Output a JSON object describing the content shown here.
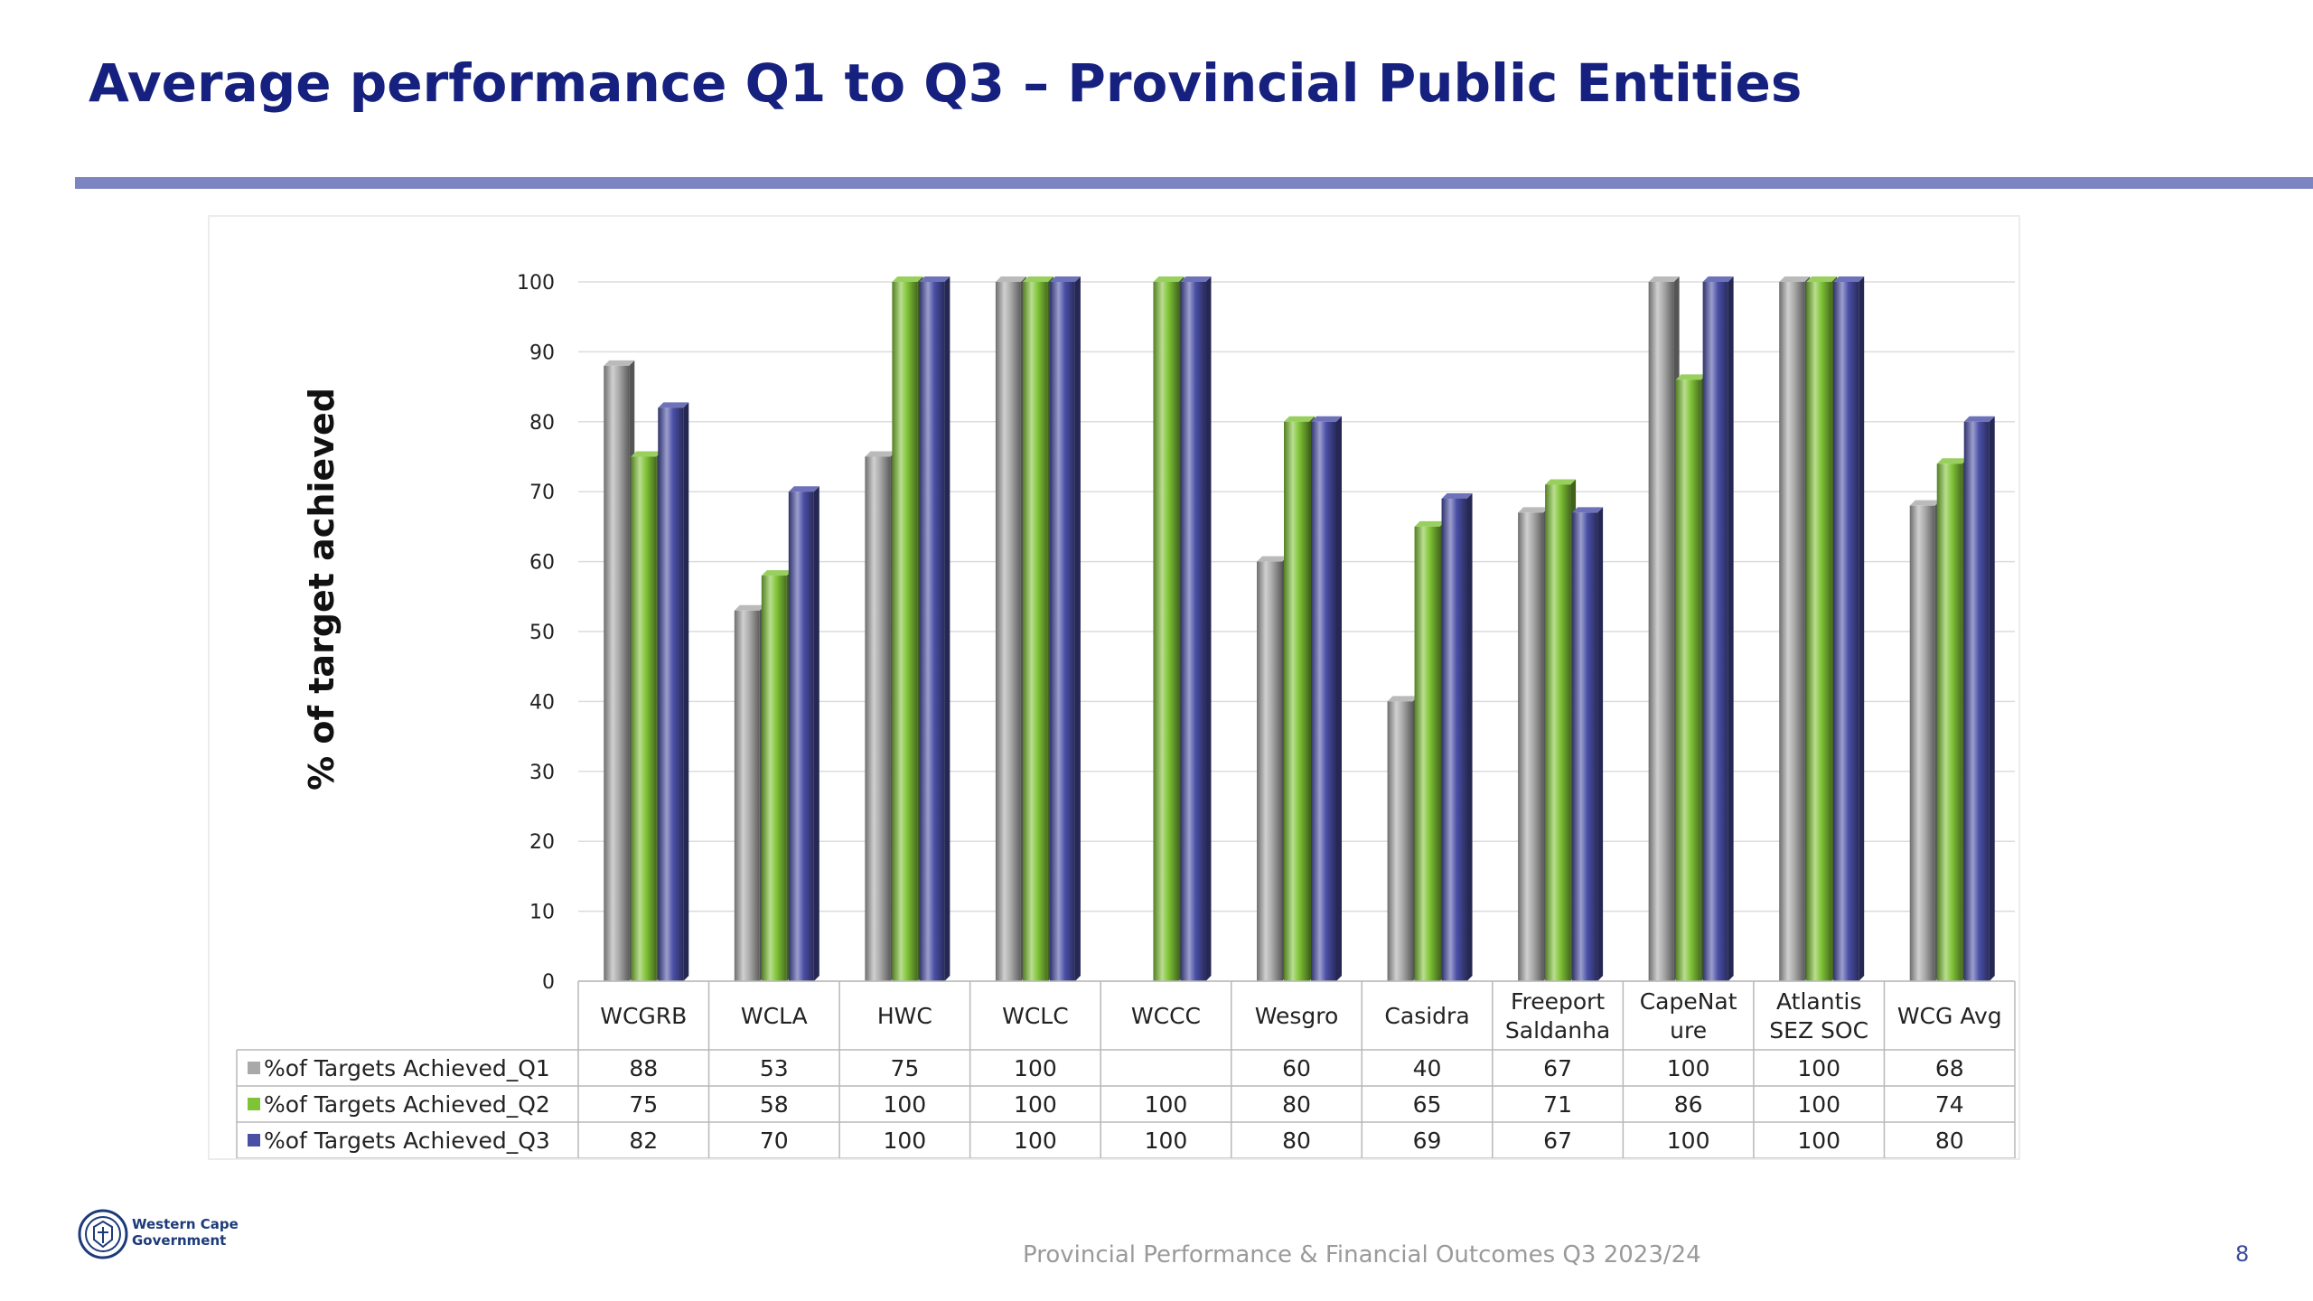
{
  "slide": {
    "title": "Average performance Q1 to Q3 – Provincial Public Entities",
    "footer": "Provincial Performance & Financial Outcomes Q3 2023/24",
    "page_number": "8",
    "logo_text": "Western Cape\nGovernment"
  },
  "colors": {
    "title": "#16217f",
    "rule": "#7d84c2",
    "q1": "#a9a9a9",
    "q2": "#7fc336",
    "q3": "#4a4fa6"
  },
  "chart_data": {
    "type": "bar",
    "title": "",
    "ylabel": "% of target achieved",
    "xlabel": "",
    "ylim": [
      0,
      100
    ],
    "yticks": [
      0,
      10,
      20,
      30,
      40,
      50,
      60,
      70,
      80,
      90,
      100
    ],
    "grid": true,
    "legend": "data-table",
    "categories": [
      "WCGRB",
      "WCLA",
      "HWC",
      "WCLC",
      "WCCC",
      "Wesgro",
      "Casidra",
      "Freeport Saldanha",
      "CapeNature",
      "Atlantis SEZ SOC",
      "WCG Avg"
    ],
    "category_lines": [
      [
        "WCGRB"
      ],
      [
        "WCLA"
      ],
      [
        "HWC"
      ],
      [
        "WCLC"
      ],
      [
        "WCCC"
      ],
      [
        "Wesgro"
      ],
      [
        "Casidra"
      ],
      [
        "Freeport",
        "Saldanha"
      ],
      [
        "CapeNat",
        "ure"
      ],
      [
        "Atlantis",
        "SEZ SOC"
      ],
      [
        "WCG Avg"
      ]
    ],
    "series": [
      {
        "name": "%of Targets Achieved_Q1",
        "color": "#a9a9a9",
        "values": [
          88,
          53,
          75,
          100,
          null,
          60,
          40,
          67,
          100,
          100,
          68
        ]
      },
      {
        "name": "%of Targets Achieved_Q2",
        "color": "#7fc336",
        "values": [
          75,
          58,
          100,
          100,
          100,
          80,
          65,
          71,
          86,
          100,
          74
        ]
      },
      {
        "name": "%of Targets Achieved_Q3",
        "color": "#4a4fa6",
        "values": [
          82,
          70,
          100,
          100,
          100,
          80,
          69,
          67,
          100,
          100,
          80
        ]
      }
    ]
  }
}
